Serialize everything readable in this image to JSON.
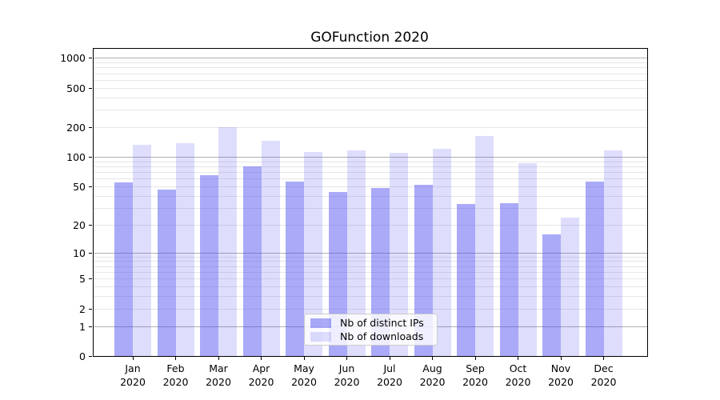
{
  "chart_data": {
    "type": "bar",
    "title": "GOFunction 2020",
    "categories": [
      "Jan",
      "Feb",
      "Mar",
      "Apr",
      "May",
      "Jun",
      "Jul",
      "Aug",
      "Sep",
      "Oct",
      "Nov",
      "Dec"
    ],
    "x_tick_second_line": "2020",
    "series": [
      {
        "name": "Nb of distinct IPs",
        "color": "rgba(70,70,240,0.46)",
        "values": [
          55,
          47,
          66,
          81,
          57,
          44,
          49,
          52,
          33,
          34,
          16,
          56
        ]
      },
      {
        "name": "Nb of downloads",
        "color": "rgba(70,70,240,0.18)",
        "values": [
          135,
          140,
          200,
          148,
          114,
          118,
          111,
          121,
          163,
          87,
          24,
          117
        ]
      }
    ],
    "xlabel": "",
    "ylabel": "",
    "y_axis": {
      "scale": "log1p (position proportional to log10(value+1))",
      "tick_labels": [
        0,
        1,
        2,
        5,
        10,
        20,
        50,
        100,
        200,
        500,
        1000
      ],
      "major_gridlines": [
        1,
        10,
        100,
        1000
      ],
      "minor_gridlines": [
        2,
        3,
        4,
        5,
        6,
        7,
        8,
        9,
        20,
        30,
        40,
        50,
        60,
        70,
        80,
        90,
        200,
        300,
        400,
        500,
        600,
        700,
        800,
        900
      ],
      "ymax": 1270
    },
    "legend": {
      "position": "lower center",
      "entries": [
        "Nb of distinct IPs",
        "Nb of downloads"
      ]
    },
    "grid": true
  },
  "colors": {
    "background": "#ffffff",
    "major_grid": "#b0b0b0",
    "minor_grid": "#e7e7e7",
    "spine": "#000000",
    "tick": "#000000",
    "text": "#000000",
    "legend_border": "#cccccc",
    "legend_background": "rgba(255,255,255,0.8)"
  }
}
